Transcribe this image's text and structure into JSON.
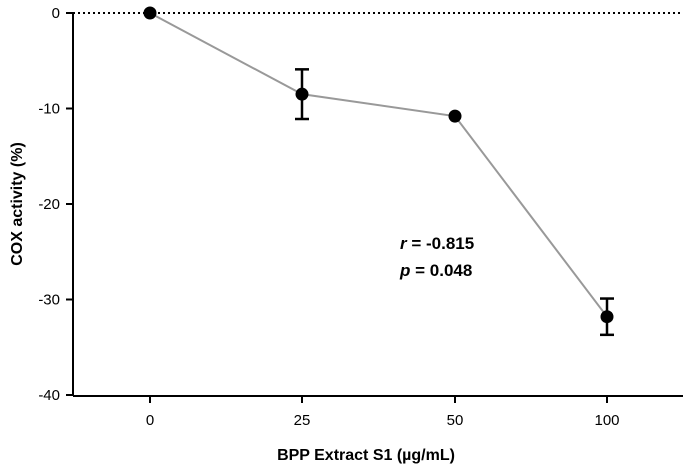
{
  "chart_data": {
    "type": "line",
    "xlabel": "BPP Extract S1 (µg/mL)",
    "ylabel": "COX activity (%)",
    "categories": [
      "0",
      "25",
      "50",
      "100"
    ],
    "yticks": [
      "0",
      "-10",
      "-20",
      "-30",
      "-40"
    ],
    "ytick_values": [
      0,
      -10,
      -20,
      -30,
      -40
    ],
    "ylim": [
      -40,
      0
    ],
    "grid": false,
    "reference_line": {
      "y": 0,
      "style": "dotted"
    },
    "series": [
      {
        "values": [
          0,
          -8.5,
          -10.8,
          -31.8
        ],
        "error": [
          0,
          2.6,
          0,
          1.9
        ],
        "color": "#999999",
        "marker_color": "#000000"
      }
    ],
    "annotation": {
      "r_symbol": "r",
      "r_text": " = -0.815",
      "p_symbol": "p",
      "p_text": " = 0.048"
    }
  }
}
